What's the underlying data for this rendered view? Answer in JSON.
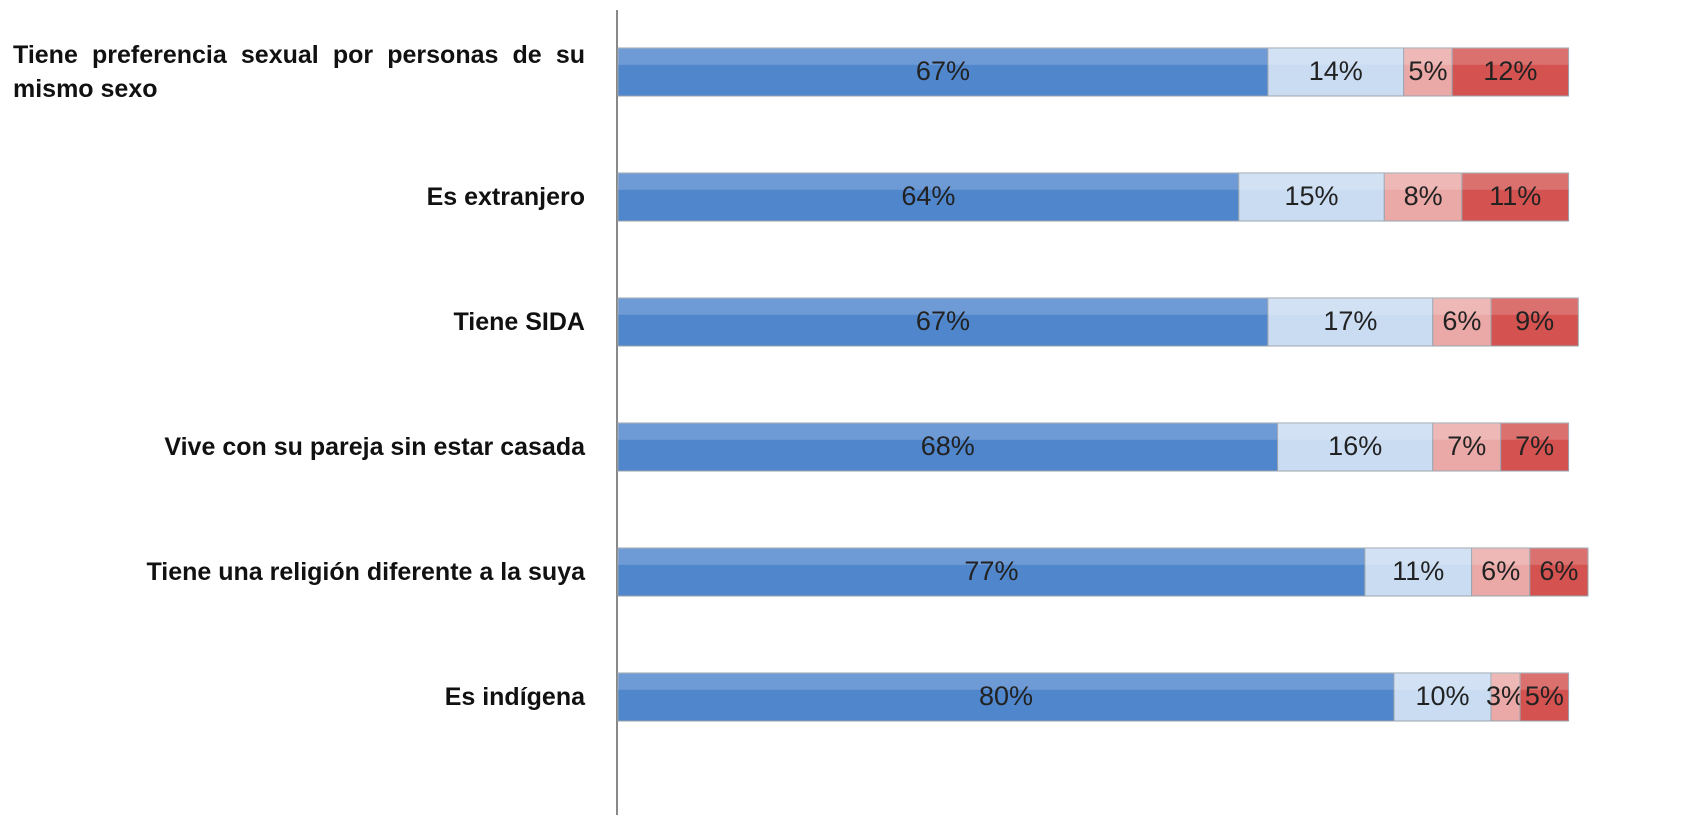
{
  "chart_data": {
    "type": "stacked-barh",
    "categories": [
      "Tiene preferencia sexual por personas de su mismo sexo",
      "Es extranjero",
      "Tiene SIDA",
      "Vive con su pareja sin estar casada",
      "Tiene una religión diferente a la suya",
      "Es indígena"
    ],
    "series": [
      {
        "color": "#4f86cc",
        "values": [
          67,
          64,
          67,
          68,
          77,
          80
        ],
        "value_labels": [
          "67%",
          "64%",
          "67%",
          "68%",
          "77%",
          "80%"
        ]
      },
      {
        "color": "#c9dcf2",
        "values": [
          14,
          15,
          17,
          16,
          11,
          10
        ],
        "value_labels": [
          "14%",
          "15%",
          "17%",
          "16%",
          "11%",
          "10%"
        ]
      },
      {
        "color": "#eaa9a6",
        "values": [
          5,
          8,
          6,
          7,
          6,
          3
        ],
        "value_labels": [
          "5%",
          "8%",
          "6%",
          "7%",
          "6%",
          "3%"
        ]
      },
      {
        "color": "#d4524f",
        "values": [
          12,
          11,
          9,
          7,
          6,
          5
        ],
        "value_labels": [
          "12%",
          "11%",
          "9%",
          "7%",
          "6%",
          "5%"
        ]
      }
    ],
    "xlim": [
      0,
      100
    ]
  }
}
